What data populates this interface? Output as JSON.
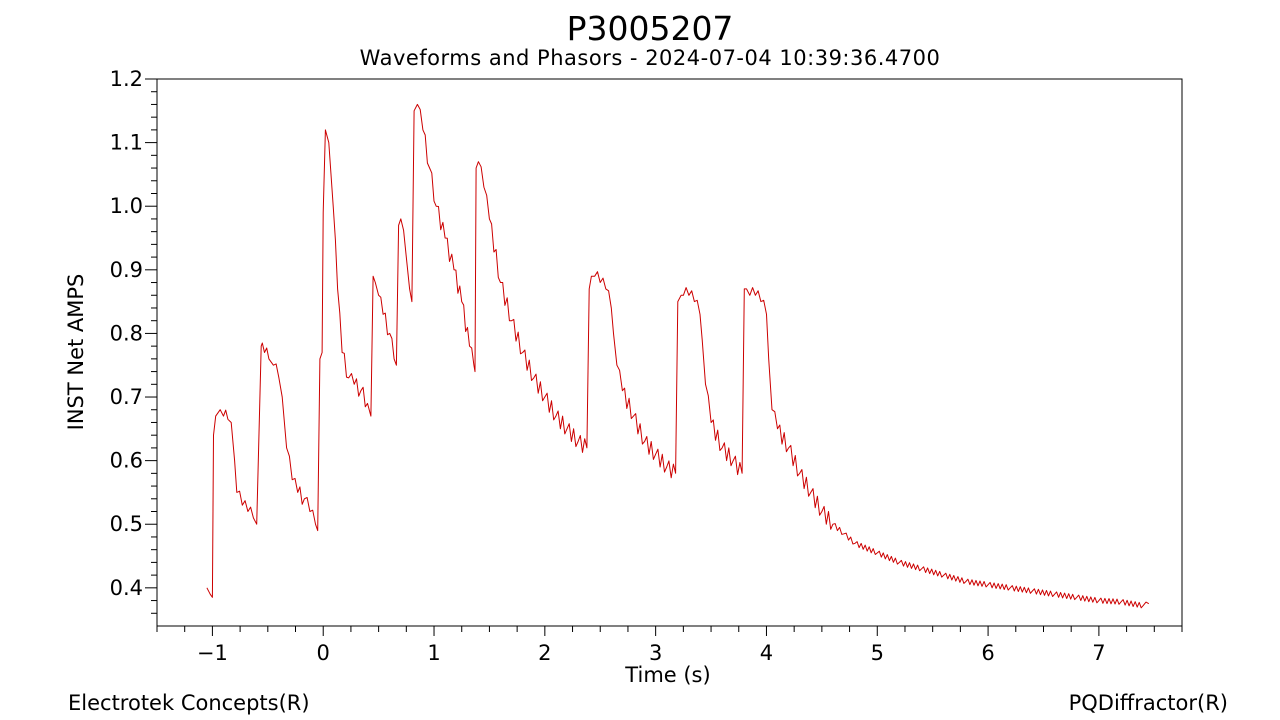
{
  "chart_data": {
    "type": "line",
    "title": "P3005207",
    "subtitle": "Waveforms and Phasors - 2024-07-04 10:39:36.4700",
    "xlabel": "Time (s)",
    "ylabel": "INST Net AMPS",
    "xlim": [
      -1.5,
      7.75
    ],
    "ylim": [
      0.34,
      1.2
    ],
    "x_ticks": [
      -1,
      0,
      1,
      2,
      3,
      4,
      5,
      6,
      7
    ],
    "x_tick_labels": [
      "−1",
      "0",
      "1",
      "2",
      "3",
      "4",
      "5",
      "6",
      "7"
    ],
    "y_ticks": [
      0.4,
      0.5,
      0.6,
      0.7,
      0.8,
      0.9,
      1.0,
      1.1,
      1.2
    ],
    "y_tick_labels": [
      "0.4",
      "0.5",
      "0.6",
      "0.7",
      "0.8",
      "0.9",
      "1.0",
      "1.1",
      "1.2"
    ],
    "grid": false,
    "line_color": "#cc0000",
    "series": [
      {
        "x": [
          -1.05,
          -1.02,
          -1.0,
          -0.99,
          -0.97,
          -0.93,
          -0.9,
          -0.86,
          -0.83,
          -0.8,
          -0.78,
          -0.73,
          -0.68,
          -0.63,
          -0.6,
          -0.56,
          -0.55,
          -0.53,
          -0.49,
          -0.45,
          -0.4,
          -0.37,
          -0.33,
          -0.28,
          -0.23,
          -0.17,
          -0.12,
          -0.07,
          -0.05,
          -0.03,
          -0.01,
          0.0,
          0.02,
          0.05,
          0.09,
          0.13,
          0.17,
          0.23,
          0.28,
          0.34,
          0.4,
          0.43,
          0.45,
          0.47,
          0.5,
          0.54,
          0.6,
          0.64,
          0.66,
          0.68,
          0.7,
          0.75,
          0.78,
          0.8,
          0.82,
          0.85,
          0.9,
          0.96,
          1.02,
          1.1,
          1.18,
          1.25,
          1.32,
          1.36,
          1.37,
          1.38,
          1.4,
          1.45,
          1.5,
          1.6,
          1.7,
          1.8,
          1.9,
          2.0,
          2.1,
          2.2,
          2.3,
          2.38,
          2.4,
          2.42,
          2.45,
          2.5,
          2.55,
          2.6,
          2.62,
          2.65,
          2.7,
          2.8,
          2.9,
          3.0,
          3.1,
          3.18,
          3.2,
          3.23,
          3.25,
          3.3,
          3.35,
          3.4,
          3.42,
          3.45,
          3.5,
          3.6,
          3.7,
          3.78,
          3.8,
          3.82,
          3.85,
          3.9,
          3.95,
          4.0,
          4.02,
          4.05,
          4.1,
          4.2,
          4.3,
          4.4,
          4.5,
          4.6,
          4.7,
          4.8,
          5.0,
          5.2,
          5.4,
          5.6,
          5.8,
          6.0,
          6.2,
          6.4,
          6.6,
          6.8,
          7.0,
          7.2,
          7.4,
          7.45
        ],
        "y": [
          0.4,
          0.39,
          0.385,
          0.64,
          0.67,
          0.68,
          0.67,
          0.665,
          0.66,
          0.6,
          0.55,
          0.53,
          0.52,
          0.51,
          0.5,
          0.78,
          0.785,
          0.77,
          0.76,
          0.75,
          0.73,
          0.7,
          0.62,
          0.57,
          0.55,
          0.54,
          0.52,
          0.5,
          0.49,
          0.76,
          0.77,
          0.99,
          1.12,
          1.1,
          1.0,
          0.87,
          0.77,
          0.73,
          0.72,
          0.71,
          0.69,
          0.67,
          0.89,
          0.88,
          0.86,
          0.83,
          0.8,
          0.76,
          0.75,
          0.97,
          0.98,
          0.92,
          0.87,
          0.85,
          1.15,
          1.16,
          1.12,
          1.06,
          1.0,
          0.95,
          0.9,
          0.85,
          0.78,
          0.75,
          0.74,
          1.06,
          1.07,
          1.03,
          0.98,
          0.88,
          0.82,
          0.77,
          0.73,
          0.7,
          0.67,
          0.65,
          0.63,
          0.62,
          0.87,
          0.89,
          0.89,
          0.88,
          0.87,
          0.84,
          0.8,
          0.75,
          0.71,
          0.67,
          0.63,
          0.61,
          0.59,
          0.58,
          0.85,
          0.86,
          0.86,
          0.86,
          0.85,
          0.83,
          0.79,
          0.72,
          0.66,
          0.62,
          0.6,
          0.58,
          0.87,
          0.87,
          0.86,
          0.86,
          0.85,
          0.83,
          0.76,
          0.68,
          0.65,
          0.62,
          0.58,
          0.55,
          0.52,
          0.5,
          0.485,
          0.47,
          0.455,
          0.44,
          0.43,
          0.42,
          0.41,
          0.405,
          0.4,
          0.395,
          0.39,
          0.385,
          0.38,
          0.378,
          0.372,
          0.375
        ]
      }
    ]
  },
  "footer": {
    "left": "Electrotek Concepts(R)",
    "right": "PQDiffractor(R)"
  }
}
